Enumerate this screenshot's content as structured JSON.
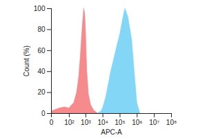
{
  "chart_data": {
    "type": "area",
    "x_label": "APC-A",
    "y_label": "Count (%)",
    "log": "x",
    "grid": false,
    "xlim": [
      0,
      100000000
    ],
    "xticks": [
      0,
      {
        "value": 100,
        "label": "10²"
      },
      {
        "value": 1000,
        "label": "10³"
      },
      {
        "value": 10000,
        "label": "10⁴"
      },
      {
        "value": 100000,
        "label": "10⁵"
      },
      {
        "value": 1000000,
        "label": "10⁶"
      },
      {
        "value": 10000000,
        "label": "10⁷"
      },
      {
        "value": 100000000,
        "label": "10⁸"
      }
    ],
    "ylim": [
      0,
      100
    ],
    "yticks": [
      0,
      20,
      40,
      60,
      80,
      100
    ],
    "series": [
      {
        "color": "#f4777a",
        "x": [
          0,
          20,
          50,
          100,
          150,
          200,
          300,
          400,
          500,
          600,
          700,
          800,
          900,
          1000,
          1200,
          1500,
          2000,
          3000,
          5000
        ],
        "values": [
          2,
          5,
          6,
          5,
          8,
          10,
          20,
          35,
          55,
          75,
          90,
          100,
          95,
          80,
          40,
          18,
          8,
          3,
          0
        ]
      },
      {
        "color": "#6ecff6",
        "x": [
          5000,
          8000,
          10000,
          15000,
          20000,
          30000,
          50000,
          70000,
          100000,
          150000,
          200000,
          300000,
          500000,
          700000,
          1000000,
          1500000
        ],
        "values": [
          0,
          2,
          5,
          15,
          25,
          40,
          55,
          65,
          75,
          90,
          100,
          92,
          70,
          40,
          10,
          0
        ]
      }
    ]
  }
}
